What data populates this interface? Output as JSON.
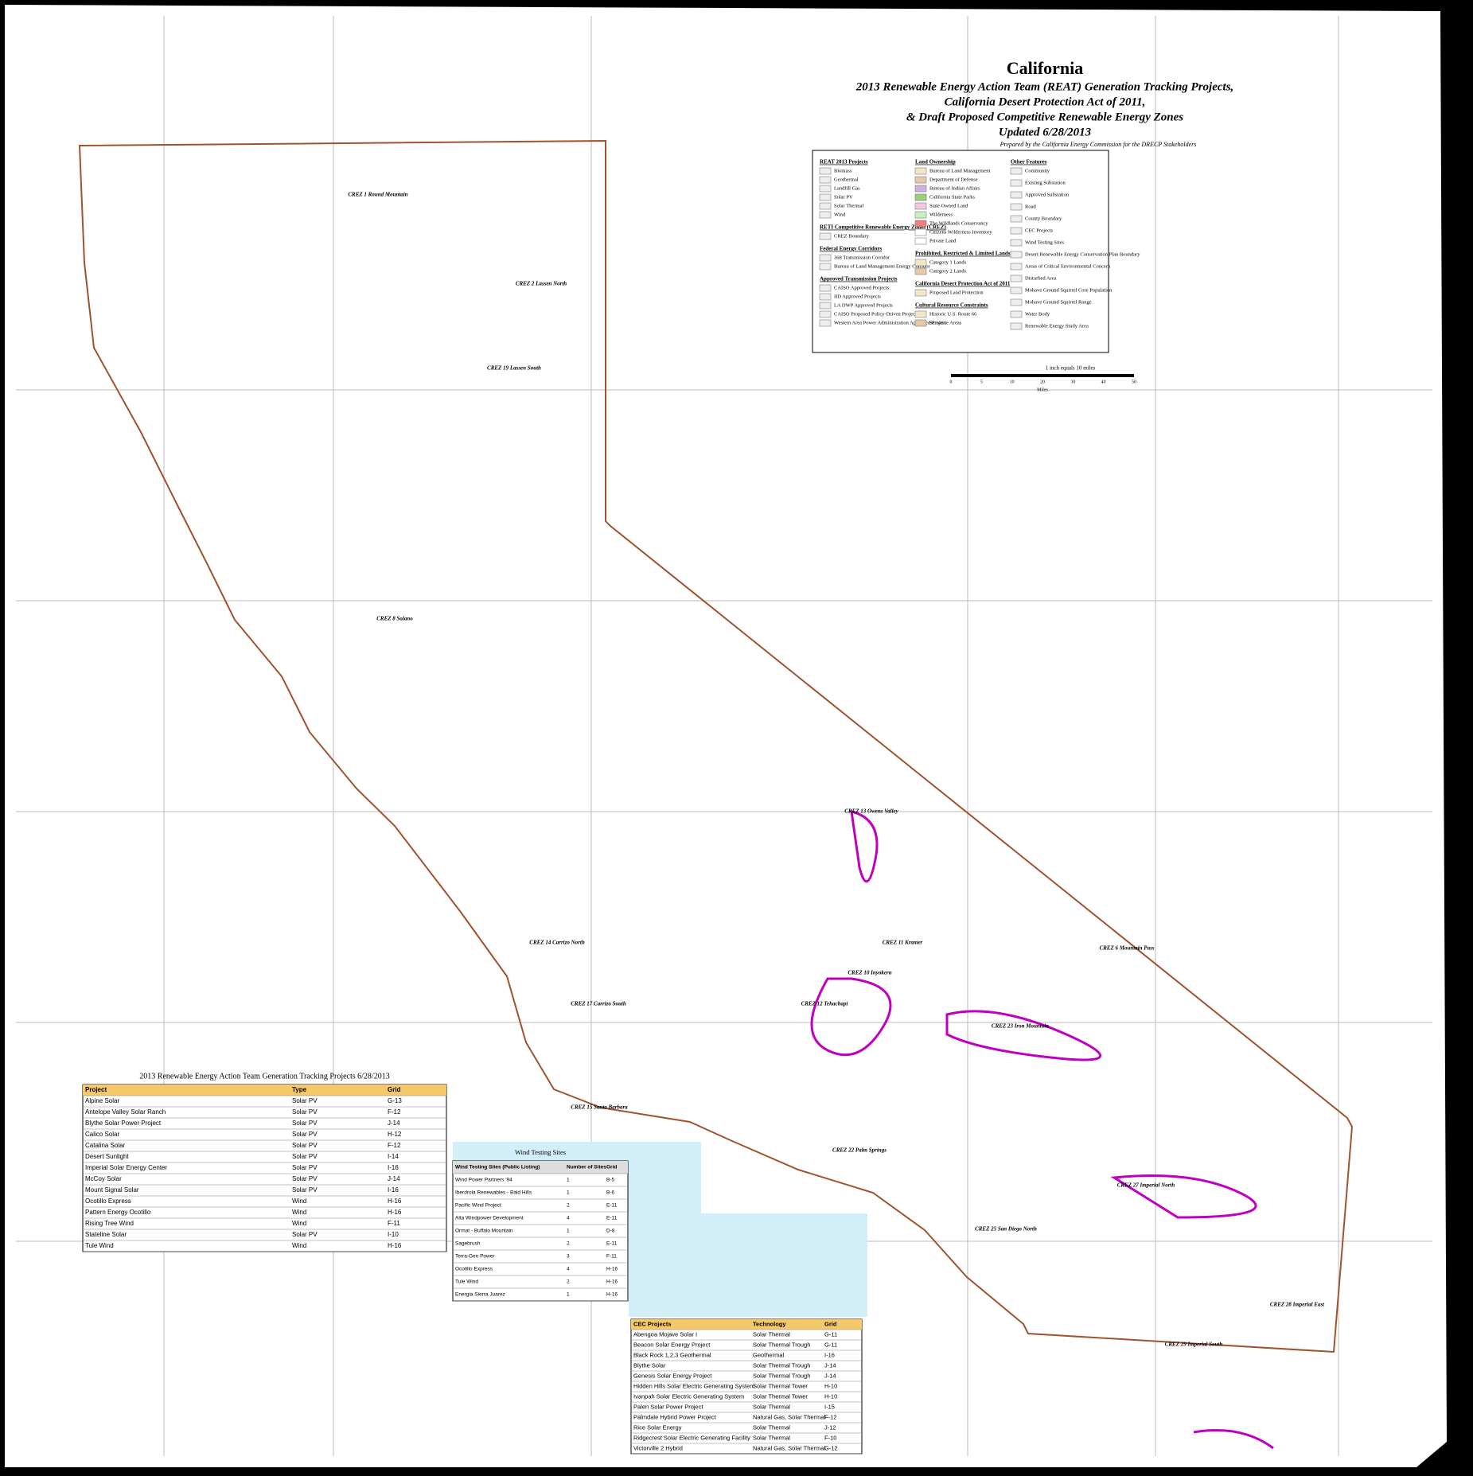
{
  "header": {
    "title": "California",
    "subtitle_lines": [
      "2013 Renewable Energy Action Team (REAT) Generation Tracking Projects,",
      "California Desert Protection Act of 2011,",
      "& Draft Proposed Competitive Renewable Energy Zones",
      "Updated 6/28/2013"
    ],
    "prepared": "Prepared by the California Energy Commission for the DRECP Stakeholders"
  },
  "legend": {
    "columns": [
      {
        "sections": [
          {
            "title": "REAT 2013 Projects",
            "items": [
              "Biomass",
              "Geothermal",
              "Landfill Gas",
              "Solar PV",
              "Solar Thermal",
              "Wind"
            ]
          },
          {
            "title": "RETI Competitive Renewable Energy Zones (CREZ)",
            "items": [
              "CREZ Boundary"
            ]
          },
          {
            "title": "Federal Energy Corridors",
            "items": [
              "368 Transmission Corridor",
              "Bureau of Land Management Energy Corridor"
            ]
          },
          {
            "title": "Approved Transmission Projects",
            "items": [
              "CAISO Approved Projects",
              "IID Approved Projects",
              "LA DWP Approved Projects",
              "CAISO Proposed Policy-Driven Projects",
              "Western Area Power Administration Approved Project"
            ]
          }
        ]
      },
      {
        "sections": [
          {
            "title": "Land Ownership",
            "items": [
              "Bureau of Land Management",
              "Department of Defense",
              "Bureau of Indian Affairs",
              "California State Parks",
              "State Owned Land",
              "Wilderness",
              "The Wildlands Conservancy",
              "Citizens Wilderness Inventory",
              "Private Land"
            ]
          },
          {
            "title": "Prohibited, Restricted & Limited Lands",
            "items": [
              "Category 1 Lands",
              "Category 2 Lands"
            ]
          },
          {
            "title": "California Desert Protection Act of 2011",
            "items": [
              "Proposed Land Protection"
            ]
          },
          {
            "title": "Cultural Resource Constraints",
            "items": [
              "Historic U.S. Route 66",
              "Sensitive Areas"
            ]
          }
        ]
      },
      {
        "sections": [
          {
            "title": "Other Features",
            "items": [
              "Community",
              "Existing Substation",
              "Approved Substation",
              "Road",
              "County Boundary",
              "CEC Projects",
              "Wind Testing Sites",
              "Desert Renewable Energy Conservation Plan Boundary",
              "Areas of Critical Environmental Concern",
              "Disturbed Area",
              "Mohave Ground Squirrel Core Population",
              "Mohave Ground Squirrel Range",
              "Water Body",
              "Renewable Energy Study Area"
            ]
          }
        ]
      }
    ]
  },
  "scale": {
    "caption": "1 inch equals 10 miles",
    "ticks": [
      "0",
      "5",
      "10",
      "20",
      "30",
      "40",
      "50"
    ],
    "unit": "Miles"
  },
  "map_labels": [
    "CREZ 12 Tehachapi",
    "CREZ 13 Owens Valley",
    "CREZ 10 Inyokern",
    "CREZ 11 Kramer",
    "CREZ 14 Carrizo North",
    "CREZ 17 Carrizo South",
    "CREZ 15 Santa Barbara",
    "CREZ 2 Lassen North",
    "CREZ 1 Round Mountain",
    "CREZ 19 Lassen South",
    "CREZ 8 Solano",
    "CREZ 6 Mountain Pass",
    "CREZ 23 Iron Mountain",
    "CREZ 22 Palm Springs",
    "CREZ 27 Imperial North",
    "CREZ 28 Imperial East",
    "CREZ 29 Imperial South",
    "CREZ 25 San Diego North"
  ],
  "reat_table": {
    "title": "2013 Renewable Energy Action Team Generation Tracking Projects 6/28/2013",
    "header": [
      "Project",
      "Type",
      "Grid"
    ],
    "rows": [
      [
        "Alpine Solar",
        "Solar PV",
        "G-13"
      ],
      [
        "Antelope Valley Solar Ranch",
        "Solar PV",
        "F-12"
      ],
      [
        "Blythe Solar Power Project",
        "Solar PV",
        "J-14"
      ],
      [
        "Calico Solar",
        "Solar PV",
        "H-12"
      ],
      [
        "Catalina Solar",
        "Solar PV",
        "F-12"
      ],
      [
        "Desert Sunlight",
        "Solar PV",
        "I-14"
      ],
      [
        "Imperial Solar Energy Center",
        "Solar PV",
        "I-16"
      ],
      [
        "McCoy Solar",
        "Solar PV",
        "J-14"
      ],
      [
        "Mount Signal Solar",
        "Solar PV",
        "I-16"
      ],
      [
        "Ocotillo Express",
        "Wind",
        "H-16"
      ],
      [
        "Pattern Energy Ocotillo",
        "Wind",
        "H-16"
      ],
      [
        "Rising Tree Wind",
        "Wind",
        "F-11"
      ],
      [
        "Stateline Solar",
        "Solar PV",
        "I-10"
      ],
      [
        "Tule Wind",
        "Wind",
        "H-16"
      ]
    ]
  },
  "wind_table": {
    "title": "Wind Testing Sites",
    "header": [
      "Wind Testing Sites (Public Listing)",
      "Number of Sites",
      "Grid"
    ],
    "rows": [
      [
        "Wind Power Partners '94",
        "1",
        "B-5"
      ],
      [
        "Iberdrola Renewables - Bald Hills",
        "1",
        "B-6"
      ],
      [
        "Pacific Wind Project",
        "2",
        "E-11"
      ],
      [
        "Alta Windpower Development",
        "4",
        "E-11"
      ],
      [
        "Ormat - Buffalo Mountain",
        "1",
        "D-8"
      ],
      [
        "Sagebrush",
        "2",
        "E-11"
      ],
      [
        "Terra-Gen Power",
        "3",
        "F-11"
      ],
      [
        "Ocotillo Express",
        "4",
        "H-16"
      ],
      [
        "Tule Wind",
        "2",
        "H-16"
      ],
      [
        "Energia Sierra Juarez",
        "1",
        "H-16"
      ]
    ]
  },
  "cec_table": {
    "header": [
      "CEC Projects",
      "Technology",
      "Grid"
    ],
    "rows": [
      [
        "Abengoa Mojave Solar I",
        "Solar Thermal",
        "G-11"
      ],
      [
        "Beacon Solar Energy Project",
        "Solar Thermal Trough",
        "G-11"
      ],
      [
        "Black Rock 1,2,3 Geothermal",
        "Geothermal",
        "I-16"
      ],
      [
        "Blythe Solar",
        "Solar Thermal Trough",
        "J-14"
      ],
      [
        "Genesis Solar Energy Project",
        "Solar Thermal Trough",
        "J-14"
      ],
      [
        "Hidden Hills Solar Electric Generating System",
        "Solar Thermal Tower",
        "H-10"
      ],
      [
        "Ivanpah Solar Electric Generating System",
        "Solar Thermal Tower",
        "H-10"
      ],
      [
        "Palen Solar Power Project",
        "Solar Thermal",
        "I-15"
      ],
      [
        "Palmdale Hybrid Power Project",
        "Natural Gas, Solar Thermal",
        "F-12"
      ],
      [
        "Rice Solar Energy",
        "Solar Thermal",
        "J-12"
      ],
      [
        "Ridgecrest Solar Electric Generating Facility",
        "Solar Thermal",
        "F-10"
      ],
      [
        "Victorville 2 Hybrid",
        "Natural Gas, Solar Thermal",
        "G-12"
      ]
    ]
  }
}
